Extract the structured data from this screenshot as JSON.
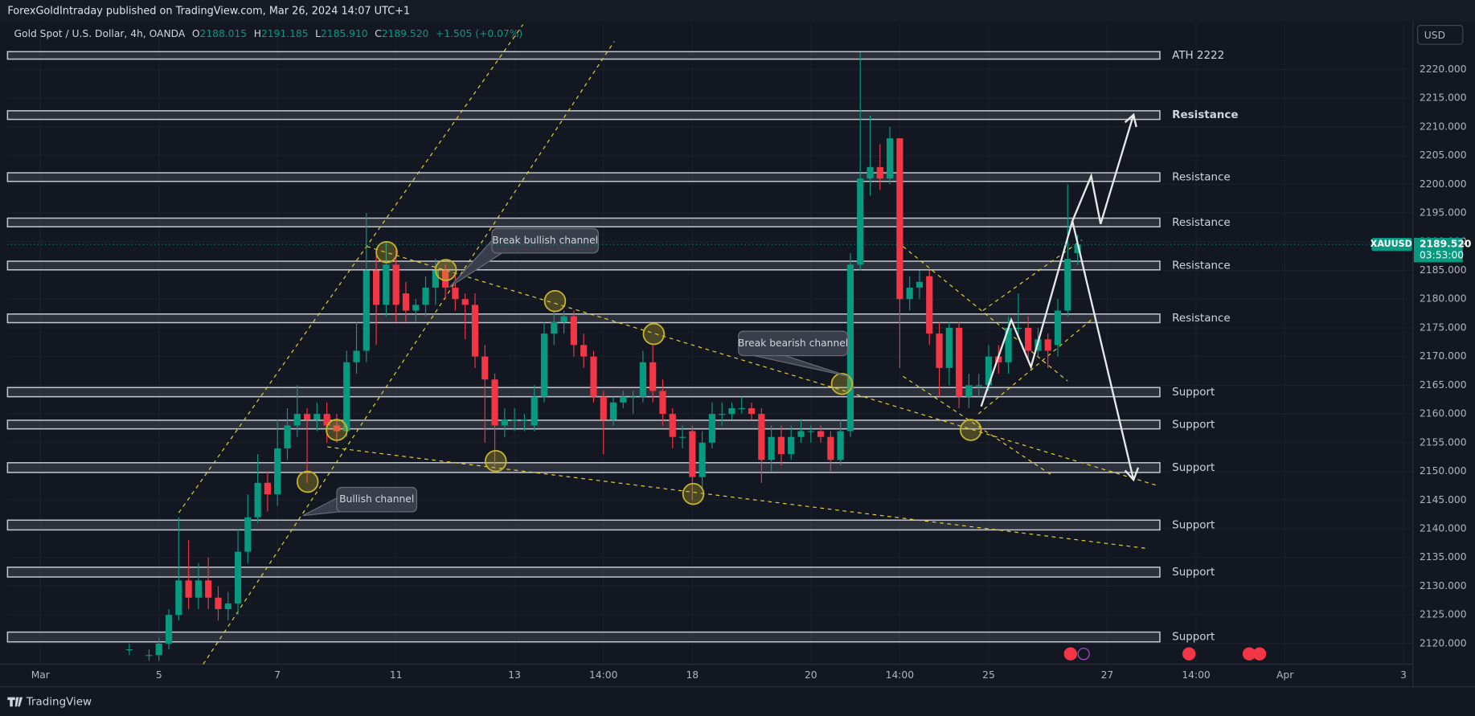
{
  "publisher": "ForexGoldIntraday published on TradingView.com, Mar 26, 2024 14:07 UTC+1",
  "brand": "TradingView",
  "currency_button": "USD",
  "chart_data": {
    "type": "candlestick",
    "legend": {
      "title": "Gold Spot / U.S. Dollar, 4h, OANDA",
      "o": "O",
      "open": "2188.015",
      "h": "H",
      "high": "2191.185",
      "l": "L",
      "low": "2185.910",
      "c": "C",
      "close": "2189.520",
      "change": "+1.505 (+0.07%)"
    },
    "up_color": "#089981",
    "down_color": "#f23645",
    "x": [
      -3,
      -1,
      0,
      1,
      2,
      3,
      4,
      5,
      6,
      7,
      8,
      9,
      10,
      11,
      12,
      13,
      14,
      15,
      16,
      17,
      18,
      19,
      20,
      21,
      22,
      23,
      24,
      25,
      26,
      27,
      28,
      29,
      30,
      31,
      32,
      33,
      34,
      35,
      36,
      37,
      38,
      39,
      40,
      41,
      42,
      43,
      44,
      45,
      46,
      47,
      48,
      49,
      50,
      51,
      52,
      53,
      54,
      55,
      56,
      57,
      58,
      59,
      60,
      61,
      62,
      63,
      64,
      65,
      66,
      67,
      68,
      69,
      70,
      71,
      72,
      73,
      74,
      75,
      76,
      77,
      78,
      79,
      80,
      81,
      82,
      83,
      84,
      85,
      86,
      87,
      88,
      89,
      90,
      91,
      92,
      93
    ],
    "open": [
      2119,
      2118,
      2118,
      2120,
      2125,
      2131,
      2128,
      2131,
      2128,
      2126,
      2127,
      2136,
      2142,
      2148,
      2146,
      2154,
      2158,
      2160,
      2159,
      2160,
      2158,
      2157,
      2169,
      2171,
      2185,
      2179,
      2186,
      2181,
      2178,
      2179,
      2182,
      2185,
      2182,
      2180,
      2179,
      2170,
      2166,
      2158,
      2159,
      2159,
      2158,
      2163,
      2174,
      2176,
      2177,
      2172,
      2170,
      2163,
      2159,
      2162,
      2163,
      2163,
      2169,
      2164,
      2160,
      2156,
      2157,
      2149,
      2155,
      2160,
      2160,
      2161,
      2161,
      2160,
      2152,
      2156,
      2153,
      2156,
      2157,
      2157,
      2156,
      2152,
      2157,
      2186,
      2201,
      2203,
      2201,
      2208,
      2180,
      2182,
      2184,
      2174,
      2168,
      2175,
      2163,
      2165,
      2165,
      2170,
      2169,
      2175,
      2175,
      2171,
      2173,
      2172,
      2178,
      2188.015
    ],
    "high": [
      2120,
      2119,
      2121,
      2126,
      2142,
      2138,
      2134,
      2135,
      2130,
      2129,
      2140,
      2146,
      2153,
      2150,
      2159,
      2161,
      2165,
      2161,
      2162,
      2162,
      2160,
      2171,
      2176,
      2195,
      2188,
      2190,
      2189,
      2183,
      2180,
      2184,
      2187,
      2186,
      2184,
      2181,
      2181,
      2172,
      2167,
      2161,
      2161,
      2160,
      2165,
      2176,
      2178,
      2178,
      2178,
      2174,
      2171,
      2164,
      2163,
      2164,
      2164,
      2171,
      2172,
      2166,
      2161,
      2158,
      2158,
      2157,
      2162,
      2162,
      2162,
      2163,
      2162,
      2161,
      2158,
      2158,
      2158,
      2159,
      2158,
      2158,
      2157,
      2159,
      2188,
      2223,
      2212,
      2207,
      2210,
      2208,
      2184,
      2185,
      2185,
      2176,
      2176,
      2176,
      2167,
      2167,
      2172,
      2172,
      2177,
      2181,
      2177,
      2175,
      2174,
      2180,
      2200,
      2191.185
    ],
    "low": [
      2118,
      2117,
      2117,
      2119,
      2124,
      2126,
      2126,
      2126,
      2124,
      2124,
      2125,
      2134,
      2141,
      2143,
      2144,
      2152,
      2156,
      2148,
      2157,
      2155,
      2155,
      2156,
      2167,
      2169,
      2172,
      2177,
      2176,
      2176,
      2176,
      2177,
      2179,
      2180,
      2178,
      2173,
      2168,
      2155,
      2151,
      2156,
      2157,
      2157,
      2157,
      2162,
      2172,
      2174,
      2170,
      2168,
      2162,
      2153,
      2158,
      2161,
      2160,
      2162,
      2162,
      2158,
      2154,
      2154,
      2145,
      2147,
      2154,
      2158,
      2159,
      2160,
      2159,
      2148,
      2150,
      2151,
      2152,
      2155,
      2155,
      2155,
      2150,
      2151,
      2156,
      2185,
      2198,
      2199,
      2200,
      2168,
      2178,
      2180,
      2172,
      2163,
      2165,
      2161,
      2161,
      2163,
      2164,
      2167,
      2167,
      2173,
      2169,
      2170,
      2168,
      2170,
      2177,
      2185.91
    ],
    "close": [
      2119,
      2118,
      2120,
      2125,
      2131,
      2128,
      2131,
      2128,
      2126,
      2127,
      2136,
      2142,
      2148,
      2146,
      2154,
      2158,
      2160,
      2159,
      2160,
      2158,
      2157,
      2169,
      2171,
      2185,
      2179,
      2186,
      2179,
      2178,
      2179,
      2182,
      2185,
      2182,
      2180,
      2179,
      2170,
      2166,
      2158,
      2159,
      2159,
      2159,
      2163,
      2174,
      2176,
      2177,
      2172,
      2170,
      2163,
      2159,
      2162,
      2163,
      2163,
      2169,
      2164,
      2160,
      2156,
      2156,
      2149,
      2155,
      2160,
      2160,
      2161,
      2161,
      2160,
      2152,
      2156,
      2153,
      2156,
      2157,
      2157,
      2156,
      2152,
      2157,
      2186,
      2201,
      2203,
      2201,
      2208,
      2180,
      2182,
      2183,
      2174,
      2168,
      2175,
      2163,
      2165,
      2165,
      2170,
      2169,
      2175,
      2175,
      2171,
      2173,
      2171,
      2178,
      2187,
      2189.52
    ],
    "xlim": [
      -15.33,
      126.95
    ],
    "xticks": [
      {
        "value": -12,
        "label": "Mar"
      },
      {
        "value": 0,
        "label": "5"
      },
      {
        "value": 12,
        "label": "7"
      },
      {
        "value": 24,
        "label": "11"
      },
      {
        "value": 36,
        "label": "13"
      },
      {
        "value": 45,
        "label": "14:00"
      },
      {
        "value": 54,
        "label": "18"
      },
      {
        "value": 66,
        "label": "20"
      },
      {
        "value": 75,
        "label": "14:00"
      },
      {
        "value": 84,
        "label": "25"
      },
      {
        "value": 96,
        "label": "27"
      },
      {
        "value": 105,
        "label": "14:00"
      },
      {
        "value": 114,
        "label": "Apr"
      },
      {
        "value": 126,
        "label": "3"
      }
    ],
    "ylim": [
      2116.4,
      2228
    ],
    "yticks": [
      {
        "value": 2120,
        "label": "2120.000"
      },
      {
        "value": 2125,
        "label": "2125.000"
      },
      {
        "value": 2130,
        "label": "2130.000"
      },
      {
        "value": 2135,
        "label": "2135.000"
      },
      {
        "value": 2140,
        "label": "2140.000"
      },
      {
        "value": 2145,
        "label": "2145.000"
      },
      {
        "value": 2150,
        "label": "2150.000"
      },
      {
        "value": 2155,
        "label": "2155.000"
      },
      {
        "value": 2160,
        "label": "2160.000"
      },
      {
        "value": 2165,
        "label": "2165.000"
      },
      {
        "value": 2170,
        "label": "2170.000"
      },
      {
        "value": 2175,
        "label": "2175.000"
      },
      {
        "value": 2180,
        "label": "2180.000"
      },
      {
        "value": 2185,
        "label": "2185.000"
      },
      {
        "value": 2190,
        "label": "2190.000"
      },
      {
        "value": 2195,
        "label": "2195.000"
      },
      {
        "value": 2200,
        "label": "2200.000"
      },
      {
        "value": 2205,
        "label": "2205.000"
      },
      {
        "value": 2210,
        "label": "2210.000"
      },
      {
        "value": 2215,
        "label": "2215.000"
      },
      {
        "value": 2220,
        "label": "2220.000"
      }
    ],
    "grid": true,
    "grid_color": "#1c202b",
    "last_price": {
      "symbol": "XAUUSD",
      "value": 2189.52,
      "label": "2189.520",
      "countdown": "03:53:00",
      "color": "#089981"
    },
    "levels": [
      {
        "label": "ATH 2222",
        "top": 2223.1,
        "bottom": 2221.8
      },
      {
        "label": "Resistance",
        "top": 2212.8,
        "bottom": 2211.3
      },
      {
        "label": "Resistance",
        "top": 2202.0,
        "bottom": 2200.5
      },
      {
        "label": "Resistance",
        "top": 2194.1,
        "bottom": 2192.6
      },
      {
        "label": "Resistance",
        "top": 2186.6,
        "bottom": 2185.1
      },
      {
        "label": "Resistance",
        "top": 2177.4,
        "bottom": 2175.9
      },
      {
        "label": "Support",
        "top": 2164.6,
        "bottom": 2163.0
      },
      {
        "label": "Support",
        "top": 2158.9,
        "bottom": 2157.4
      },
      {
        "label": "Support",
        "top": 2151.5,
        "bottom": 2149.8
      },
      {
        "label": "Support",
        "top": 2141.5,
        "bottom": 2139.8
      },
      {
        "label": "Support",
        "top": 2133.3,
        "bottom": 2131.6
      },
      {
        "label": "Support",
        "top": 2122.0,
        "bottom": 2120.3
      }
    ],
    "annotations": [
      {
        "text": "Break bullish channel"
      },
      {
        "text": "Bullish channel"
      },
      {
        "text": "Break bearish channel"
      }
    ]
  }
}
